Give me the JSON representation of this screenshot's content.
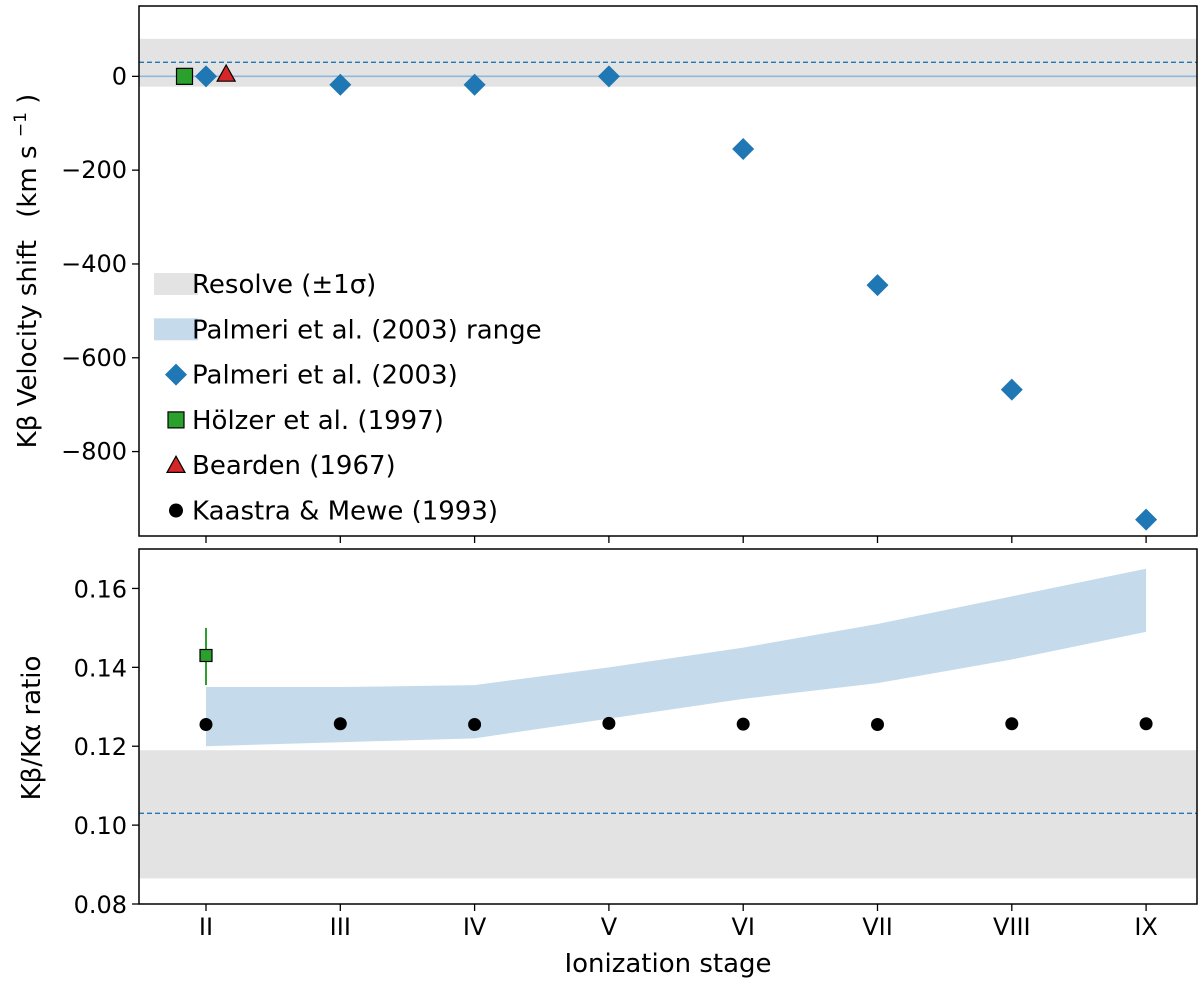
{
  "chart_data": [
    {
      "type": "scatter",
      "panel": "top",
      "ylabel_main": "Kβ Velocity shift",
      "ylabel_unit_pre": "(km s",
      "ylabel_unit_sup": "−1",
      "ylabel_unit_post": ")",
      "ylim": [
        -980,
        150
      ],
      "yticks": [
        0,
        -200,
        -400,
        -600,
        -800
      ],
      "ytick_labels": [
        "0",
        "−200",
        "−400",
        "−600",
        "−800"
      ],
      "categories": [
        "II",
        "III",
        "IV",
        "V",
        "VI",
        "VII",
        "VIII",
        "IX"
      ],
      "resolve_band": {
        "low": -22,
        "high": 80
      },
      "resolve_dashed": 30,
      "palmeri_line": 0,
      "series": [
        {
          "name": "Palmeri et al. (2003)",
          "marker": "diamond",
          "color": "#1f77b4",
          "x": [
            "II",
            "III",
            "IV",
            "V",
            "VI",
            "VII",
            "VIII",
            "IX"
          ],
          "values": [
            0,
            -18,
            -18,
            0,
            -155,
            -445,
            -668,
            -945
          ]
        },
        {
          "name": "Hölzer et al. (1997)",
          "marker": "square",
          "color": "#2ca02c",
          "x_offset": -0.16,
          "values": [
            0
          ]
        },
        {
          "name": "Bearden (1967)",
          "marker": "triangle",
          "color": "#d62728",
          "x_offset": 0.15,
          "values": [
            5
          ]
        }
      ],
      "legend": [
        {
          "label": "Resolve (±1σ)",
          "kind": "band",
          "color": "#e3e3e3"
        },
        {
          "label": "Palmeri et al. (2003) range",
          "kind": "band",
          "color": "#c5dbec"
        },
        {
          "label": "Palmeri et al. (2003)",
          "kind": "diamond",
          "color": "#1f77b4"
        },
        {
          "label": "Hölzer et al. (1997)",
          "kind": "square",
          "color": "#2ca02c"
        },
        {
          "label": "Bearden (1967)",
          "kind": "triangle",
          "color": "#d62728"
        },
        {
          "label": "Kaastra & Mewe (1993)",
          "kind": "circle",
          "color": "#000000"
        }
      ],
      "legend_position": "lower-left"
    },
    {
      "type": "scatter",
      "panel": "bottom",
      "ylabel": "Kβ/Kα ratio",
      "xlabel": "Ionization stage",
      "ylim": [
        0.08,
        0.17
      ],
      "yticks": [
        0.08,
        0.1,
        0.12,
        0.14,
        0.16
      ],
      "ytick_labels": [
        "0.08",
        "0.10",
        "0.12",
        "0.14",
        "0.16"
      ],
      "categories": [
        "II",
        "III",
        "IV",
        "V",
        "VI",
        "VII",
        "VIII",
        "IX"
      ],
      "resolve_band": {
        "low": 0.0865,
        "high": 0.119
      },
      "resolve_dashed": 0.103,
      "palmeri_range": {
        "x": [
          "II",
          "III",
          "IV",
          "V",
          "VI",
          "VII",
          "VIII",
          "IX"
        ],
        "low": [
          0.12,
          0.121,
          0.122,
          0.127,
          0.132,
          0.136,
          0.142,
          0.149
        ],
        "high": [
          0.135,
          0.135,
          0.1355,
          0.14,
          0.145,
          0.151,
          0.158,
          0.165
        ]
      },
      "series": [
        {
          "name": "Kaastra & Mewe (1993)",
          "marker": "circle",
          "color": "#000000",
          "x": [
            "II",
            "III",
            "IV",
            "V",
            "VI",
            "VII",
            "VIII",
            "IX"
          ],
          "values": [
            0.1255,
            0.1257,
            0.1255,
            0.1258,
            0.1256,
            0.1255,
            0.1257,
            0.1257
          ]
        },
        {
          "name": "Hölzer et al. (1997)",
          "marker": "square",
          "color": "#2ca02c",
          "x": [
            "II"
          ],
          "values": [
            0.143
          ],
          "err_low": 0.1355,
          "err_high": 0.15
        }
      ]
    }
  ]
}
